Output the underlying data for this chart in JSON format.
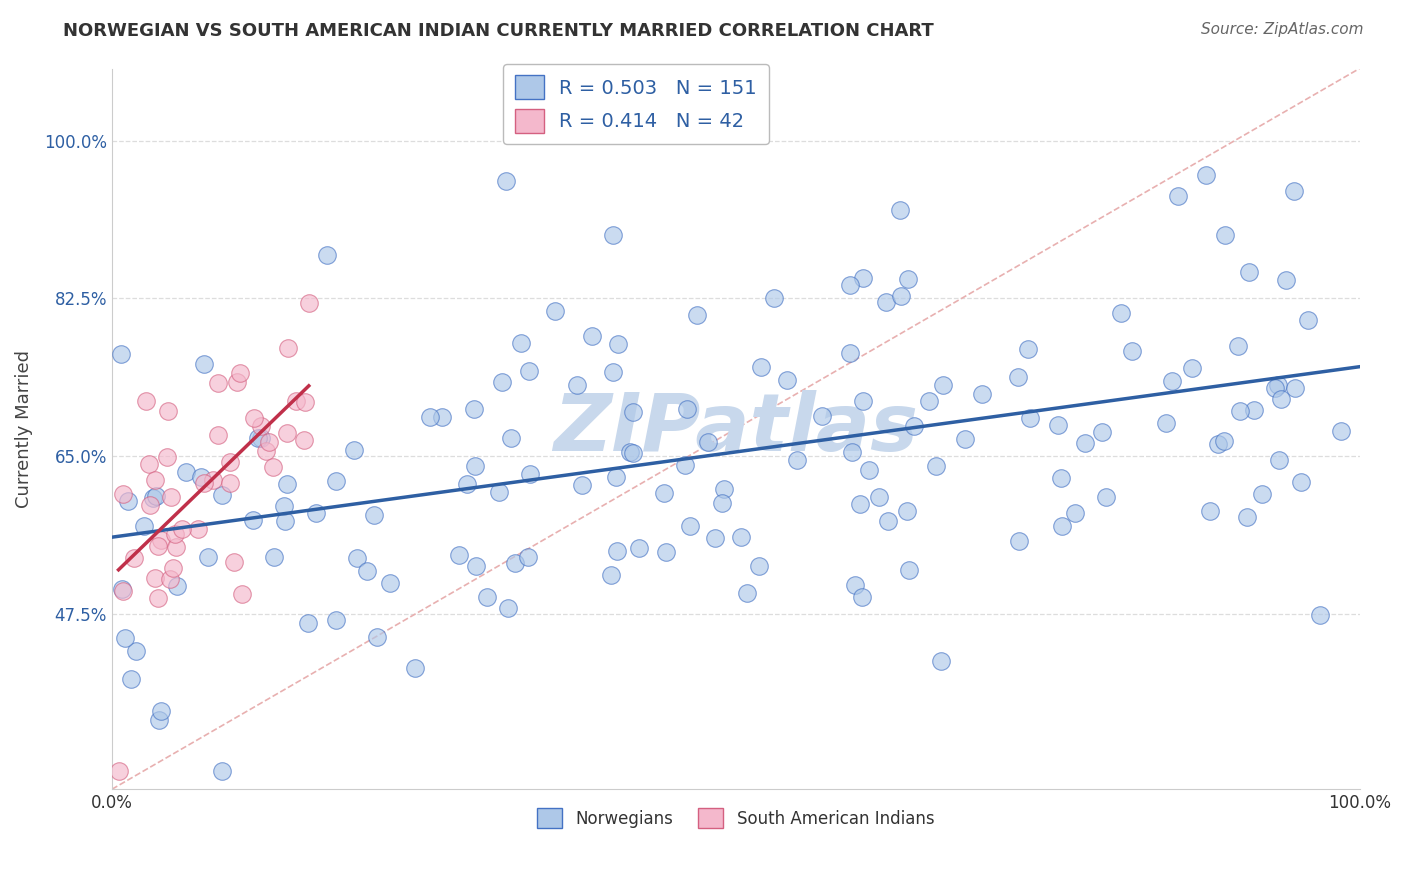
{
  "title": "NORWEGIAN VS SOUTH AMERICAN INDIAN CURRENTLY MARRIED CORRELATION CHART",
  "source": "Source: ZipAtlas.com",
  "ylabel": "Currently Married",
  "norwegian_R": 0.503,
  "norwegian_N": 151,
  "south_american_R": 0.414,
  "south_american_N": 42,
  "blue_fill": "#aec8e8",
  "blue_edge": "#4472c4",
  "blue_line": "#2e5fa3",
  "pink_fill": "#f4b8cc",
  "pink_edge": "#d46080",
  "pink_line": "#c0304a",
  "diagonal_color": "#e8b0b0",
  "legend_color": "#2e5fa3",
  "bg_color": "#ffffff",
  "grid_color": "#dddddd",
  "watermark_color": "#c8d8ec",
  "xmin": 0.0,
  "xmax": 1.0,
  "ymin": 0.28,
  "ymax": 1.08,
  "ytick_vals": [
    0.475,
    0.65,
    0.825,
    1.0
  ],
  "ytick_labels": [
    "47.5%",
    "65.0%",
    "82.5%",
    "100.0%"
  ],
  "marker_size": 160,
  "nor_seed": 12,
  "sa_seed": 5
}
